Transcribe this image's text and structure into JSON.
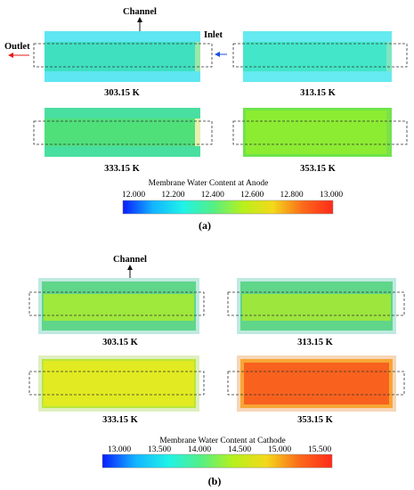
{
  "panel_a": {
    "caption": "(a)",
    "channel_label": "Channel",
    "inlet_label": "Inlet",
    "outlet_label": "Outlet",
    "cells": [
      {
        "label": "303.15 K",
        "fill": "#3fe0c0",
        "edge": "#5ee6f2",
        "right_edge": "#9ce8a8"
      },
      {
        "label": "313.15 K",
        "fill": "#43e6c8",
        "edge": "#64eaf0",
        "right_edge": "#7ee6c0"
      },
      {
        "label": "333.15 K",
        "fill": "#4fe07a",
        "edge": "#49dfa0",
        "right_edge": "#e9f0b0"
      },
      {
        "label": "353.15 K",
        "fill": "#8cec32",
        "edge": "#6ee44a",
        "right_edge": "#7ee04a"
      }
    ],
    "colorbar": {
      "title": "Membrane Water Content at Anode",
      "ticks": [
        "12.000",
        "12.200",
        "12.400",
        "12.600",
        "12.800",
        "13.000"
      ],
      "stops": [
        "#0a1cff",
        "#12b4ff",
        "#1ff2e8",
        "#54ef86",
        "#b7f01c",
        "#f4d81a",
        "#fb6a1a",
        "#ff2a1a"
      ]
    }
  },
  "panel_b": {
    "caption": "(b)",
    "channel_label": "Channel",
    "cells": [
      {
        "label": "303.15 K",
        "fill": "#9fe83c",
        "edge": "#5fd68a",
        "halo": "#bfe9e0"
      },
      {
        "label": "313.15 K",
        "fill": "#9ce63e",
        "edge": "#5fd68a",
        "halo": "#bfe9e0"
      },
      {
        "label": "333.15 K",
        "fill": "#e2ea22",
        "edge": "#b8e63c",
        "halo": "#dfeec0"
      },
      {
        "label": "353.15 K",
        "fill": "#f8621e",
        "edge": "#f7a636",
        "halo": "#f6d6b8"
      }
    ],
    "colorbar": {
      "title": "Membrane Water Content at Cathode",
      "ticks": [
        "13.000",
        "13.500",
        "14.000",
        "14.500",
        "15.000",
        "15.500"
      ],
      "stops": [
        "#0a1cff",
        "#12b4ff",
        "#1ff2e8",
        "#54ef86",
        "#b7f01c",
        "#f4d81a",
        "#fb6a1a",
        "#ff2a1a"
      ]
    }
  }
}
